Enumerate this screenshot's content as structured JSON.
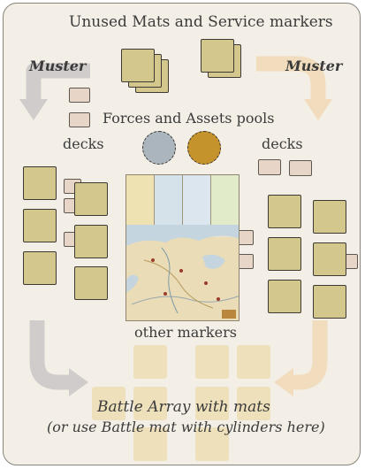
{
  "labels": {
    "unused": "Unused Mats and Service markers",
    "muster_left": "Muster",
    "muster_right": "Muster",
    "pools": "Forces and Assets pools",
    "decks_left": "decks",
    "decks_right": "decks",
    "other_markers": "other markers",
    "battle_line1": "Battle Array with mats",
    "battle_line2": "(or use Battle mat with cylinders here)"
  },
  "colors": {
    "panel_bg": "#f4efe6",
    "mat_fill": "#d4c78e",
    "battle_mat_fill": "#ede0bb",
    "marker_fill": "#e7d6c8",
    "left_arrow": "#cfcccb",
    "right_arrow": "#f1ddbd",
    "pool_forces": "#aab5bd",
    "pool_assets": "#c5932c"
  },
  "icons": {
    "pool_forces": "dashed-circle",
    "pool_assets": "dashed-circle",
    "board": "map-board"
  }
}
